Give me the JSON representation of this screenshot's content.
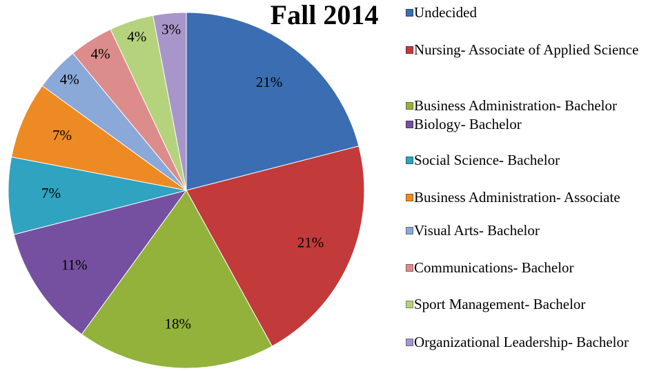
{
  "chart_data": {
    "type": "pie",
    "title": "Fall 2014",
    "categories": [
      "Undecided",
      "Nursing- Associate of Applied Science",
      "Business Administration- Bachelor",
      "Biology- Bachelor",
      "Social Science- Bachelor",
      "Business Administration- Associate",
      "Visual Arts- Bachelor",
      "Communications- Bachelor",
      "Sport Management- Bachelor",
      "Organizational Leadership- Bachelor"
    ],
    "values": [
      21,
      21,
      18,
      11,
      7,
      7,
      4,
      4,
      4,
      3
    ],
    "value_labels": [
      "21%",
      "21%",
      "18%",
      "11%",
      "7%",
      "7%",
      "4%",
      "4%",
      "4%",
      "3%"
    ],
    "colors": [
      "#3b6db3",
      "#c23a3a",
      "#93b23c",
      "#7550a0",
      "#2fa3c0",
      "#ee8a24",
      "#8aa8d8",
      "#dc8c8a",
      "#b5d27c",
      "#a896ca"
    ]
  }
}
